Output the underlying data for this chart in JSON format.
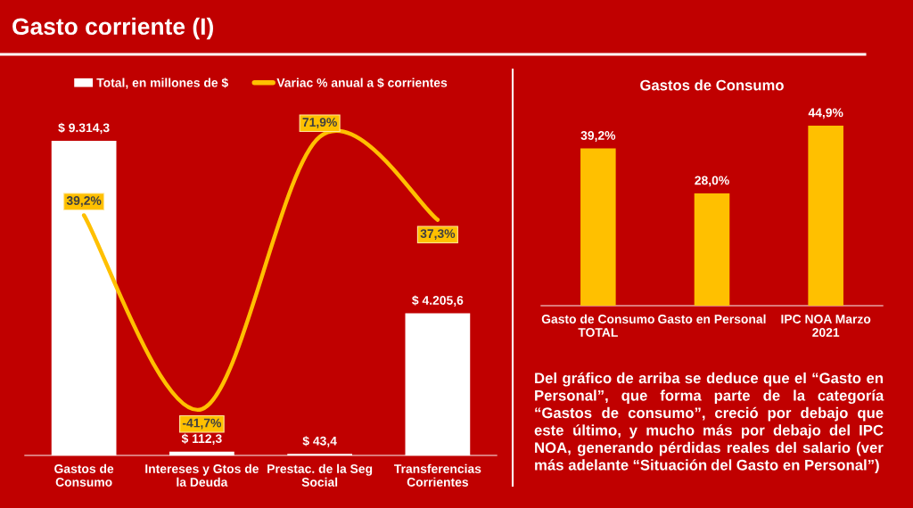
{
  "chart_data": [
    {
      "type": "bar",
      "title": "Gasto corriente (I)",
      "categories": [
        "Gastos de\nConsumo",
        "Intereses y Gtos de\nla Deuda",
        "Prestac. de la Seg\nSocial",
        "Transferencias\nCorrientes"
      ],
      "series": [
        {
          "name": "Total, en millones de $",
          "type": "bar",
          "color": "#ffffff",
          "values": [
            9314.3,
            112.3,
            43.4,
            4205.6
          ],
          "value_labels": [
            "$ 9.314,3",
            "$ 112,3",
            "$ 43,4",
            "$ 4.205,6"
          ]
        },
        {
          "name": "Variac % anual a $ corrientes",
          "type": "line",
          "axis": "y2",
          "color": "#ffc000",
          "values": [
            39.2,
            -41.7,
            71.9,
            37.3
          ],
          "value_labels": [
            "39,2%",
            "-41,7%",
            "71,9%",
            "37,3%"
          ]
        }
      ],
      "tick_labels": "x",
      "legend": "top",
      "grid": false
    },
    {
      "type": "bar",
      "title": "Gastos de Consumo",
      "categories": [
        "Gasto de Consumo\nTOTAL",
        "Gasto en Personal",
        "IPC NOA Marzo\n2021"
      ],
      "values": [
        39.2,
        28.0,
        44.9
      ],
      "color": "#ffc000",
      "value_labels": [
        "39,2%",
        "28,0%",
        "44,9%"
      ],
      "tick_labels": "x",
      "grid": false
    },
    {
      "type": "other",
      "annotations": [
        "Del gráfico de arriba se deduce que el “Gasto en Personal”, que forma parte de la categoría “Gastos de consumo”, creció por debajo que este último, y mucho más por debajo del IPC NOA, generando pérdidas reales del salario (ver más adelante “Situación del Gasto en Personal”)"
      ]
    }
  ]
}
